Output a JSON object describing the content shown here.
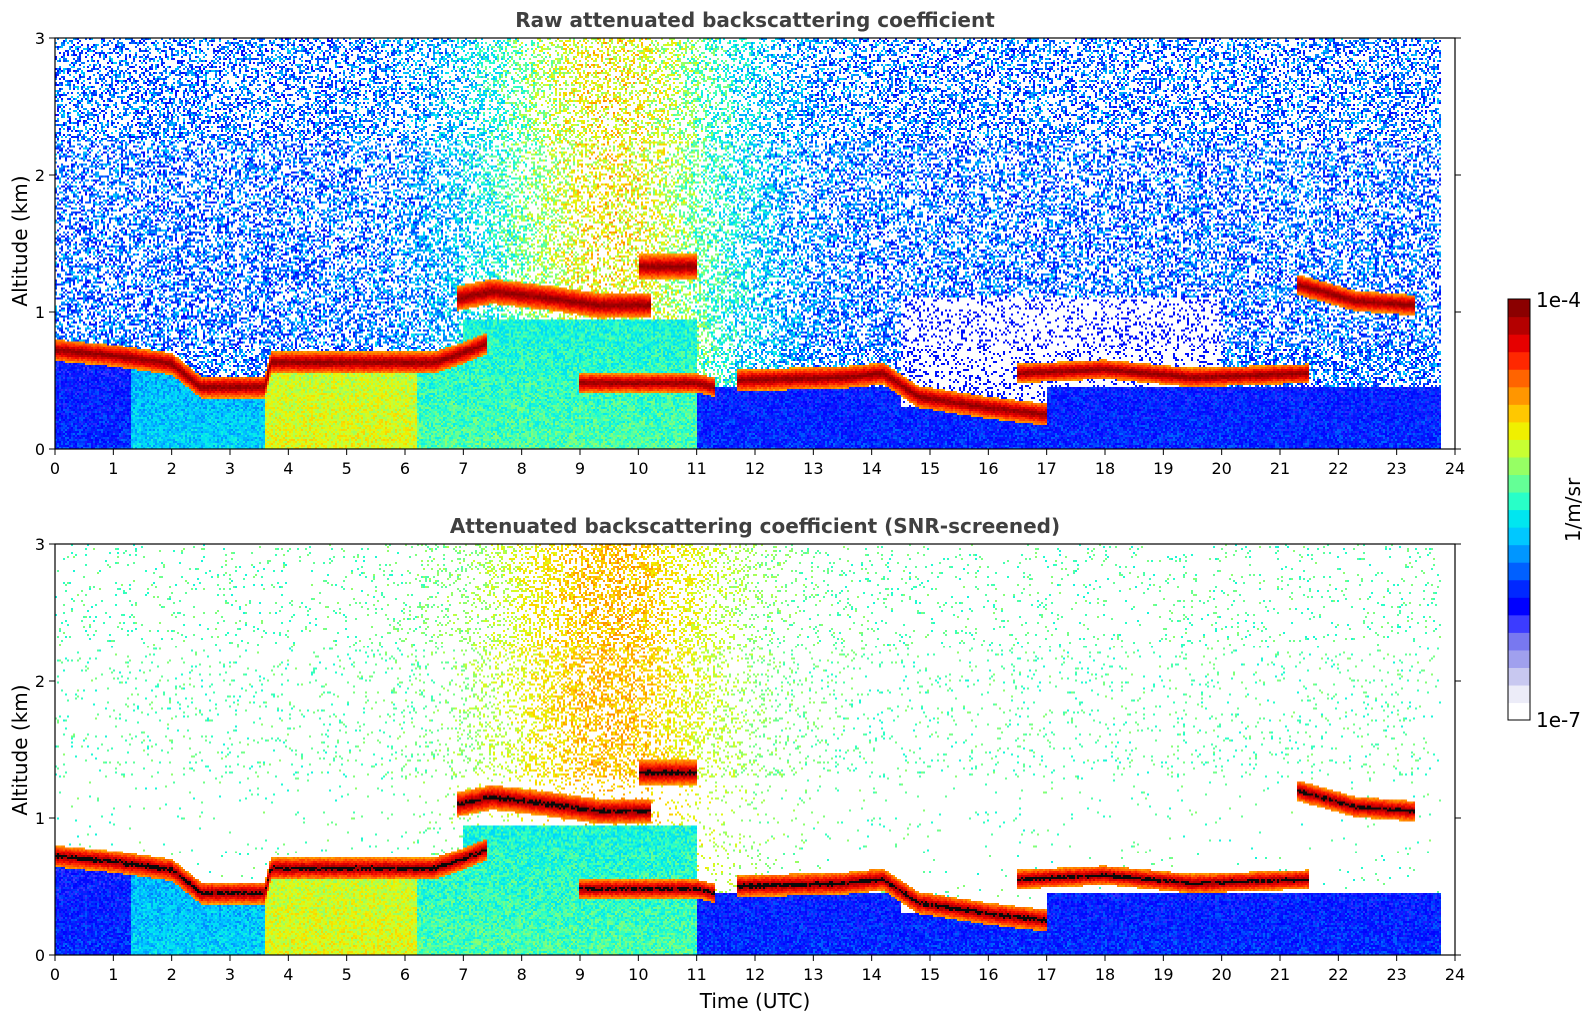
{
  "figure": {
    "colorbar": {
      "label": "1/m/sr",
      "max_label": "1e-4",
      "min_label": "1e-7",
      "scale": "log",
      "range": [
        1e-07,
        0.0001
      ],
      "colors": [
        "#ffffff",
        "#ececf8",
        "#c8c8f0",
        "#a0a0ee",
        "#7878f0",
        "#3c3cff",
        "#0000ff",
        "#0028ff",
        "#0060ff",
        "#0096ff",
        "#00c8ff",
        "#00e6f0",
        "#28ffc8",
        "#64ff96",
        "#96ff64",
        "#c8ff32",
        "#f0f000",
        "#ffc800",
        "#ff9600",
        "#ff6400",
        "#ff2800",
        "#e60000",
        "#b40000",
        "#8b0000"
      ]
    }
  },
  "chart_data": [
    {
      "type": "heatmap",
      "title": "Raw attenuated backscattering coefficient",
      "xlabel": "",
      "ylabel": "Altitude (km)",
      "xlim": [
        0,
        24
      ],
      "ylim": [
        0,
        3
      ],
      "xticks": [
        "0",
        "1",
        "2",
        "3",
        "4",
        "5",
        "6",
        "7",
        "8",
        "9",
        "10",
        "11",
        "12",
        "13",
        "14",
        "15",
        "16",
        "17",
        "18",
        "19",
        "20",
        "21",
        "22",
        "23",
        "24"
      ],
      "yticks": [
        "0",
        "1",
        "2",
        "3"
      ],
      "data_end_hour": 23.75,
      "layers": [
        {
          "name": "boundary-layer-top",
          "points": [
            [
              0,
              0.72
            ],
            [
              1,
              0.68
            ],
            [
              2,
              0.62
            ],
            [
              2.5,
              0.45
            ],
            [
              3.6,
              0.45
            ],
            [
              3.7,
              0.63
            ],
            [
              6.5,
              0.63
            ],
            [
              7.0,
              0.7
            ],
            [
              7.4,
              0.77
            ]
          ],
          "thickness": 0.16
        },
        {
          "name": "elevated-layer-morning",
          "points": [
            [
              6.9,
              1.1
            ],
            [
              7.5,
              1.15
            ],
            [
              8.5,
              1.1
            ],
            [
              9.3,
              1.05
            ],
            [
              10.2,
              1.05
            ]
          ],
          "thickness": 0.18
        },
        {
          "name": "cloud-1030",
          "points": [
            [
              10.0,
              1.33
            ],
            [
              11.0,
              1.33
            ]
          ],
          "thickness": 0.18
        },
        {
          "name": "layer-midday",
          "points": [
            [
              9.0,
              0.48
            ],
            [
              11.0,
              0.48
            ],
            [
              11.3,
              0.45
            ]
          ],
          "thickness": 0.14
        },
        {
          "name": "layer-afternoon",
          "points": [
            [
              11.7,
              0.5
            ],
            [
              13.5,
              0.52
            ],
            [
              14.2,
              0.55
            ],
            [
              14.8,
              0.38
            ],
            [
              16.0,
              0.3
            ],
            [
              17.0,
              0.25
            ]
          ],
          "thickness": 0.16
        },
        {
          "name": "layer-evening",
          "points": [
            [
              16.5,
              0.55
            ],
            [
              18.0,
              0.58
            ],
            [
              19.5,
              0.52
            ],
            [
              21.5,
              0.55
            ]
          ],
          "thickness": 0.14
        },
        {
          "name": "cloud-late",
          "points": [
            [
              21.3,
              1.2
            ],
            [
              22.3,
              1.08
            ],
            [
              23.3,
              1.05
            ]
          ],
          "thickness": 0.15
        }
      ]
    },
    {
      "type": "heatmap",
      "title": "Attenuated backscattering coefficient (SNR-screened)",
      "xlabel": "Time (UTC)",
      "ylabel": "Altitude (km)",
      "xlim": [
        0,
        24
      ],
      "ylim": [
        0,
        3
      ],
      "xticks": [
        "0",
        "1",
        "2",
        "3",
        "4",
        "5",
        "6",
        "7",
        "8",
        "9",
        "10",
        "11",
        "12",
        "13",
        "14",
        "15",
        "16",
        "17",
        "18",
        "19",
        "20",
        "21",
        "22",
        "23",
        "24"
      ],
      "yticks": [
        "0",
        "1",
        "2",
        "3"
      ],
      "data_end_hour": 23.75
    }
  ]
}
